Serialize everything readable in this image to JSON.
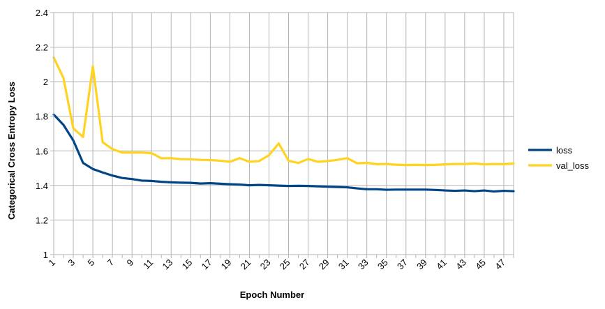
{
  "chart_data": {
    "type": "line",
    "xlabel": "Epoch Number",
    "ylabel": "Categorical Cross Entropy Loss",
    "ylim": [
      1,
      2.4
    ],
    "yticks": [
      "1",
      "1.2",
      "1.4",
      "1.6",
      "1.8",
      "2",
      "2.2",
      "2.4"
    ],
    "x": [
      1,
      2,
      3,
      4,
      5,
      6,
      7,
      8,
      9,
      10,
      11,
      12,
      13,
      14,
      15,
      16,
      17,
      18,
      19,
      20,
      21,
      22,
      23,
      24,
      25,
      26,
      27,
      28,
      29,
      30,
      31,
      32,
      33,
      34,
      35,
      36,
      37,
      38,
      39,
      40,
      41,
      42,
      43,
      44,
      45,
      46,
      47,
      48
    ],
    "xtick_labels": [
      "1",
      "3",
      "5",
      "7",
      "9",
      "11",
      "13",
      "15",
      "17",
      "19",
      "21",
      "23",
      "25",
      "27",
      "29",
      "31",
      "33",
      "35",
      "37",
      "39",
      "41",
      "43",
      "45",
      "47"
    ],
    "grid": true,
    "legend_position": "right",
    "series": [
      {
        "name": "loss",
        "color": "#004586",
        "values": [
          1.81,
          1.75,
          1.66,
          1.53,
          1.495,
          1.475,
          1.457,
          1.443,
          1.437,
          1.428,
          1.426,
          1.421,
          1.418,
          1.416,
          1.415,
          1.411,
          1.413,
          1.41,
          1.407,
          1.405,
          1.401,
          1.403,
          1.401,
          1.399,
          1.397,
          1.398,
          1.397,
          1.395,
          1.393,
          1.391,
          1.389,
          1.383,
          1.378,
          1.378,
          1.375,
          1.376,
          1.376,
          1.376,
          1.376,
          1.374,
          1.371,
          1.369,
          1.371,
          1.367,
          1.371,
          1.365,
          1.369,
          1.367
        ]
      },
      {
        "name": "val_loss",
        "color": "#ffd320",
        "values": [
          2.14,
          2.02,
          1.73,
          1.68,
          2.09,
          1.65,
          1.61,
          1.59,
          1.59,
          1.59,
          1.587,
          1.557,
          1.558,
          1.552,
          1.551,
          1.548,
          1.547,
          1.543,
          1.537,
          1.558,
          1.537,
          1.541,
          1.575,
          1.643,
          1.543,
          1.53,
          1.553,
          1.537,
          1.541,
          1.548,
          1.558,
          1.528,
          1.531,
          1.523,
          1.524,
          1.52,
          1.518,
          1.519,
          1.518,
          1.519,
          1.522,
          1.524,
          1.524,
          1.527,
          1.522,
          1.524,
          1.523,
          1.527
        ]
      }
    ]
  }
}
